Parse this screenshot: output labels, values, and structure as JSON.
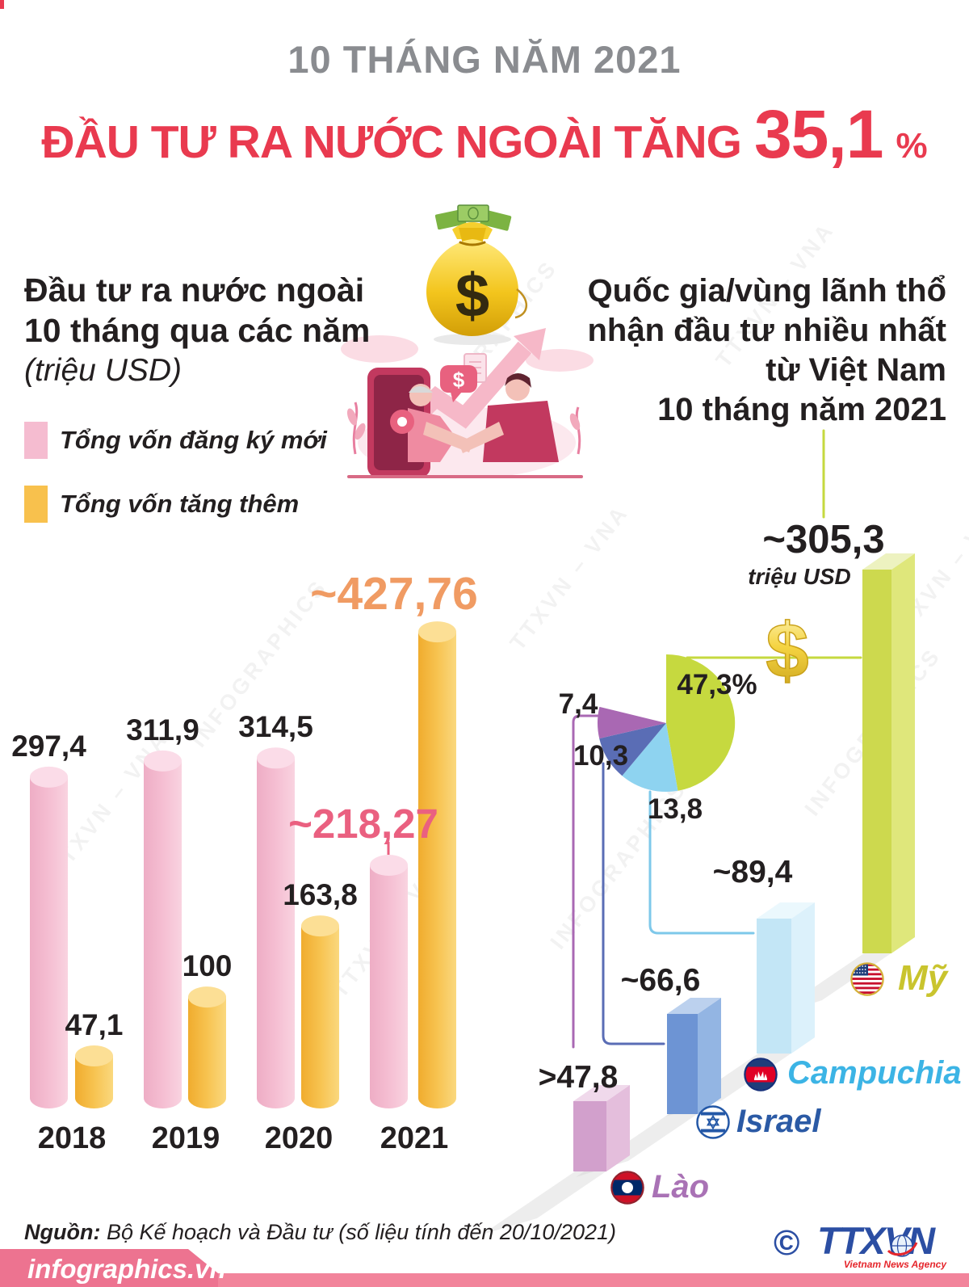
{
  "page": {
    "kicker": "10 THÁNG NĂM 2021",
    "headline_prefix": "ĐẦU TƯ RA NƯỚC NGOÀI TĂNG",
    "headline_value": "35,1",
    "headline_unit": "%"
  },
  "left_section": {
    "heading_line1": "Đầu tư ra nước ngoài",
    "heading_line2": "10 tháng qua các năm",
    "heading_unit": "(triệu USD)"
  },
  "right_section": {
    "heading_line1": "Quốc gia/vùng lãnh thổ",
    "heading_line2": "nhận đầu tư nhiều nhất",
    "heading_line3": "từ Việt Nam",
    "heading_line4": "10 tháng năm 2021",
    "top_unit": "triệu USD",
    "dollar_symbol": "$"
  },
  "chart_data": [
    {
      "type": "bar",
      "title": "Đầu tư ra nước ngoài 10 tháng qua các năm (triệu USD)",
      "categories": [
        "2018",
        "2019",
        "2020",
        "2021"
      ],
      "series": [
        {
          "name": "Tổng vốn đăng ký mới",
          "color": "#f5bcd0",
          "values": [
            297.4,
            311.9,
            314.5,
            218.27
          ],
          "labels": [
            "297,4",
            "311,9",
            "314,5",
            "~218,27"
          ]
        },
        {
          "name": "Tổng vốn tăng thêm",
          "color": "#f8c14d",
          "values": [
            47.1,
            100,
            163.8,
            427.76
          ],
          "labels": [
            "47,1",
            "100",
            "163,8",
            "~427,76"
          ]
        }
      ],
      "ylabel": "triệu USD",
      "ylim": [
        0,
        430
      ],
      "grid": false
    },
    {
      "type": "pie",
      "title": "Quốc gia/vùng lãnh thổ nhận đầu tư nhiều nhất từ Việt Nam 10 tháng năm 2021",
      "unit": "triệu USD",
      "slices": [
        {
          "country": "Mỹ",
          "percent": 47.3,
          "pie_label": "47,3%",
          "value_label": "~305,3",
          "color": "#c6d93f",
          "label_color": "#c9c42e",
          "flag": "us"
        },
        {
          "country": "Campuchia",
          "percent": 13.8,
          "pie_label": "13,8",
          "value_label": "~89,4",
          "color": "#8ed3f0",
          "label_color": "#3cb4e5",
          "flag": "cambodia"
        },
        {
          "country": "Israel",
          "percent": 10.3,
          "pie_label": "10,3",
          "value_label": "~66,6",
          "color": "#5a6db5",
          "label_color": "#2b5aa5",
          "flag": "israel"
        },
        {
          "country": "Lào",
          "percent": 7.4,
          "pie_label": ">47,8_see_value",
          "value_label": ">47,8",
          "color": "#a968b3",
          "label_color": "#a972b5",
          "flag": "laos"
        }
      ],
      "pie_slice_labels": [
        "47,3%",
        "13,8",
        "10,3",
        "7,4"
      ],
      "legend_position": "none"
    }
  ],
  "watermarks": [
    "TTXVN – VNA",
    "INFOGRAPHICS"
  ],
  "footer": {
    "source_label": "Nguồn:",
    "source_text": " Bộ Kế hoạch và Đầu tư (số liệu tính đến 20/10/2021)",
    "site": "infographics.vn",
    "copyright": "©",
    "agency_logo": "TTXVN",
    "agency_name": "Vietnam News Agency"
  }
}
